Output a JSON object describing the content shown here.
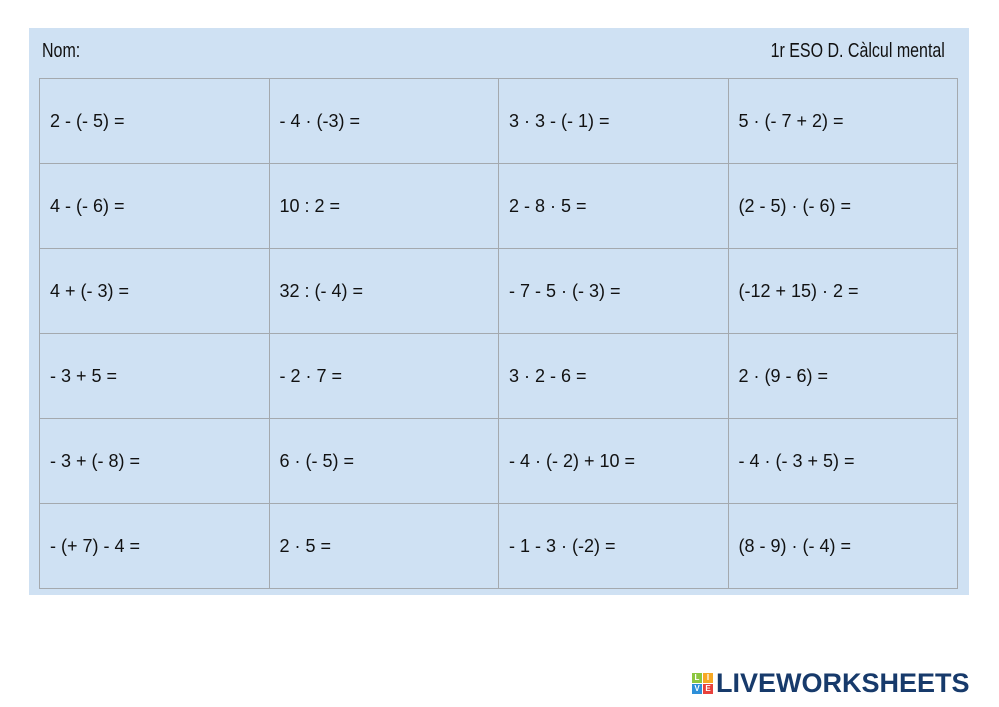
{
  "header": {
    "name_label": "Nom:",
    "title": "1r ESO D. Càlcul mental"
  },
  "grid": [
    [
      "2 - (- 5) =",
      "- 4 · (-3) =",
      "3 · 3 - (- 1) =",
      "5 · (- 7 + 2) ="
    ],
    [
      "4 - (- 6) =",
      "10 : 2 =",
      "2 - 8 · 5 =",
      "(2 - 5) · (- 6) ="
    ],
    [
      "4 + (- 3) =",
      "32 : (- 4)  =",
      "- 7 - 5 · (- 3) =",
      "(-12 + 15) · 2 ="
    ],
    [
      "- 3 + 5 =",
      "- 2 · 7 =",
      "3 · 2 - 6 =",
      "2 · (9 - 6) ="
    ],
    [
      "- 3 + (- 8) =",
      "6 · (- 5) =",
      "- 4 · (- 2) + 10 =",
      "- 4 · (- 3 + 5) ="
    ],
    [
      "- (+ 7) - 4 =",
      "2 · 5 =",
      "- 1 - 3 · (-2) =",
      "(8 - 9) · (- 4) ="
    ]
  ],
  "logo": {
    "text": "LIVEWORKSHEETS",
    "letters": [
      "L",
      "I",
      "V",
      "E"
    ],
    "colors": [
      "#8cc63f",
      "#f7a823",
      "#2d8fd8",
      "#e8413c"
    ]
  },
  "colors": {
    "panel": "#cfe1f3",
    "border": "#a4a9ae",
    "logo_text": "#173a6b"
  }
}
